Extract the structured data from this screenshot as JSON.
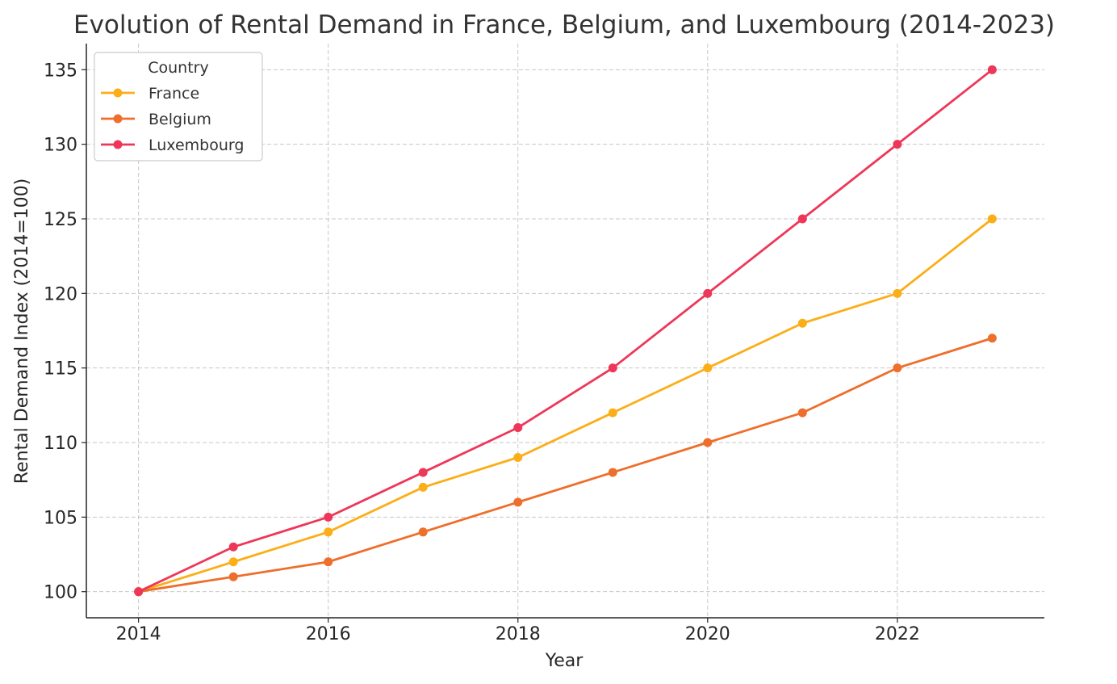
{
  "chart_data": {
    "type": "line",
    "title": "Evolution of Rental Demand in France, Belgium, and Luxembourg (2014-2023)",
    "xlabel": "Year",
    "ylabel": "Rental Demand Index (2014=100)",
    "x": [
      2014,
      2015,
      2016,
      2017,
      2018,
      2019,
      2020,
      2021,
      2022,
      2023
    ],
    "xlim": [
      2013.45,
      2023.55
    ],
    "ylim": [
      98.25,
      136.75
    ],
    "x_ticks": [
      2014,
      2016,
      2018,
      2020,
      2022
    ],
    "y_ticks": [
      100,
      105,
      110,
      115,
      120,
      125,
      130,
      135
    ],
    "grid": true,
    "legend": {
      "title": "Country",
      "placement": "top-left"
    },
    "series": [
      {
        "name": "France",
        "color": "#FBAE17",
        "values": [
          100,
          102,
          104,
          107,
          109,
          112,
          115,
          118,
          120,
          125
        ]
      },
      {
        "name": "Belgium",
        "color": "#EE6E2B",
        "values": [
          100,
          101,
          102,
          104,
          106,
          108,
          110,
          112,
          115,
          117
        ]
      },
      {
        "name": "Luxembourg",
        "color": "#EE3758",
        "values": [
          100,
          103,
          105,
          108,
          111,
          115,
          120,
          125,
          130,
          135
        ]
      }
    ]
  }
}
